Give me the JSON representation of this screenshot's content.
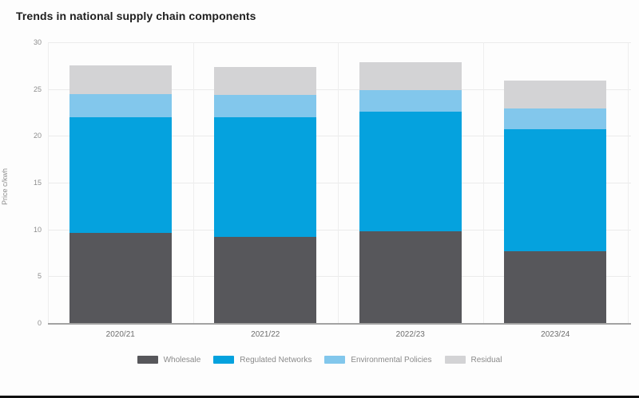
{
  "title": "Trends in national supply chain components",
  "chart_data": {
    "type": "bar",
    "stacked": true,
    "title": "Trends in national supply chain components",
    "categories": [
      "2020/21",
      "2021/22",
      "2022/23",
      "2023/24"
    ],
    "series": [
      {
        "name": "Wholesale",
        "color": "#57575B",
        "values": [
          9.6,
          9.2,
          9.8,
          7.7
        ]
      },
      {
        "name": "Regulated Networks",
        "color": "#05A2DE",
        "values": [
          12.4,
          12.8,
          12.8,
          13.0
        ]
      },
      {
        "name": "Environmental Policies",
        "color": "#82C7EC",
        "values": [
          2.5,
          2.4,
          2.3,
          2.2
        ]
      },
      {
        "name": "Residual",
        "color": "#D3D3D5",
        "values": [
          3.0,
          3.0,
          3.0,
          3.0
        ]
      }
    ],
    "stack_totals": [
      27.5,
      27.4,
      27.9,
      25.9
    ],
    "xlabel": "",
    "ylabel": "Price c/kwh",
    "ylim": [
      0,
      30
    ],
    "yticks": [
      0,
      5,
      10,
      15,
      20,
      25,
      30
    ],
    "grid": true,
    "legend_position": "bottom"
  },
  "colors": {
    "wholesale": "#57575B",
    "regulated_networks": "#05A2DE",
    "environmental_policies": "#82C7EC",
    "residual": "#D3D3D5",
    "gridline": "#ebebeb",
    "axis_line": "#a2a2a2",
    "title_text": "#1f1f1f",
    "tick_text": "#8d8d8d"
  }
}
